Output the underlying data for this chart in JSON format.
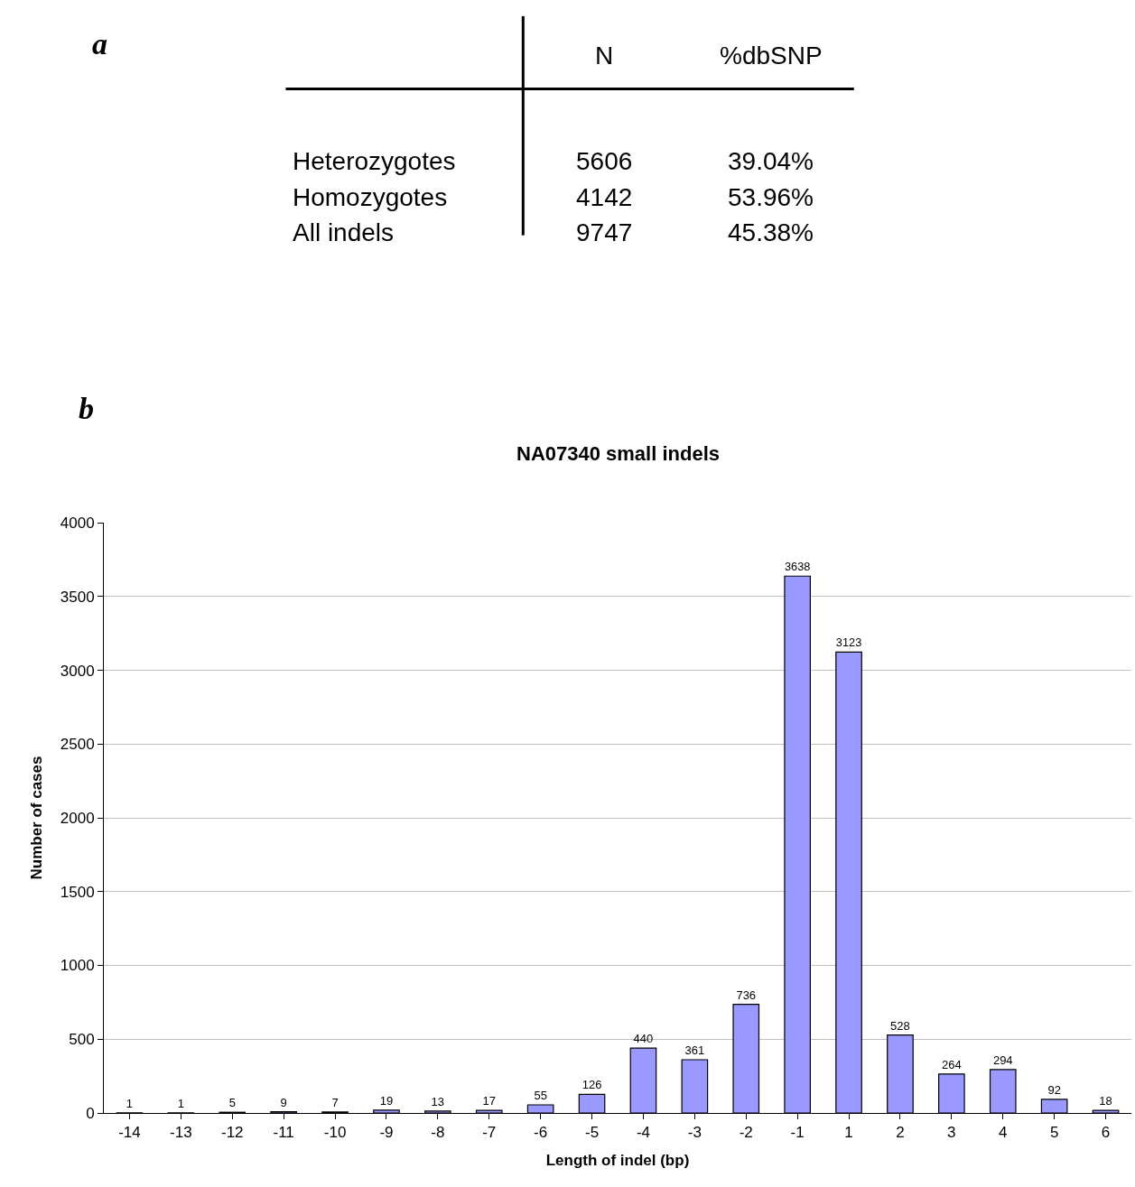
{
  "chart_data": [
    {
      "type": "other",
      "title": "a",
      "categories": [
        "N",
        "%dbSNP"
      ],
      "y_categories": [
        "Heterozygotes",
        "Homozygotes",
        "All indels"
      ],
      "cell_labels": [
        [
          "5606",
          "39.04%"
        ],
        [
          "4142",
          "53.96%"
        ],
        [
          "9747",
          "45.38%"
        ]
      ]
    },
    {
      "type": "bar",
      "title": "NA07340 small indels",
      "annotations": [
        "b"
      ],
      "xlabel": "Length of indel (bp)",
      "ylabel": "Number of cases",
      "categories": [
        "-14",
        "-13",
        "-12",
        "-11",
        "-10",
        "-9",
        "-8",
        "-7",
        "-6",
        "-5",
        "-4",
        "-3",
        "-2",
        "-1",
        "1",
        "2",
        "3",
        "4",
        "5",
        "6"
      ],
      "values": [
        1,
        1,
        5,
        9,
        7,
        19,
        13,
        17,
        55,
        126,
        440,
        361,
        736,
        3638,
        3123,
        528,
        264,
        294,
        92,
        18
      ],
      "color": "#9999ff",
      "ylim": [
        0,
        4000
      ],
      "yticks": [
        0,
        500,
        1000,
        1500,
        2000,
        2500,
        3000,
        3500,
        4000
      ],
      "grid": "y",
      "data_labels": true
    }
  ]
}
